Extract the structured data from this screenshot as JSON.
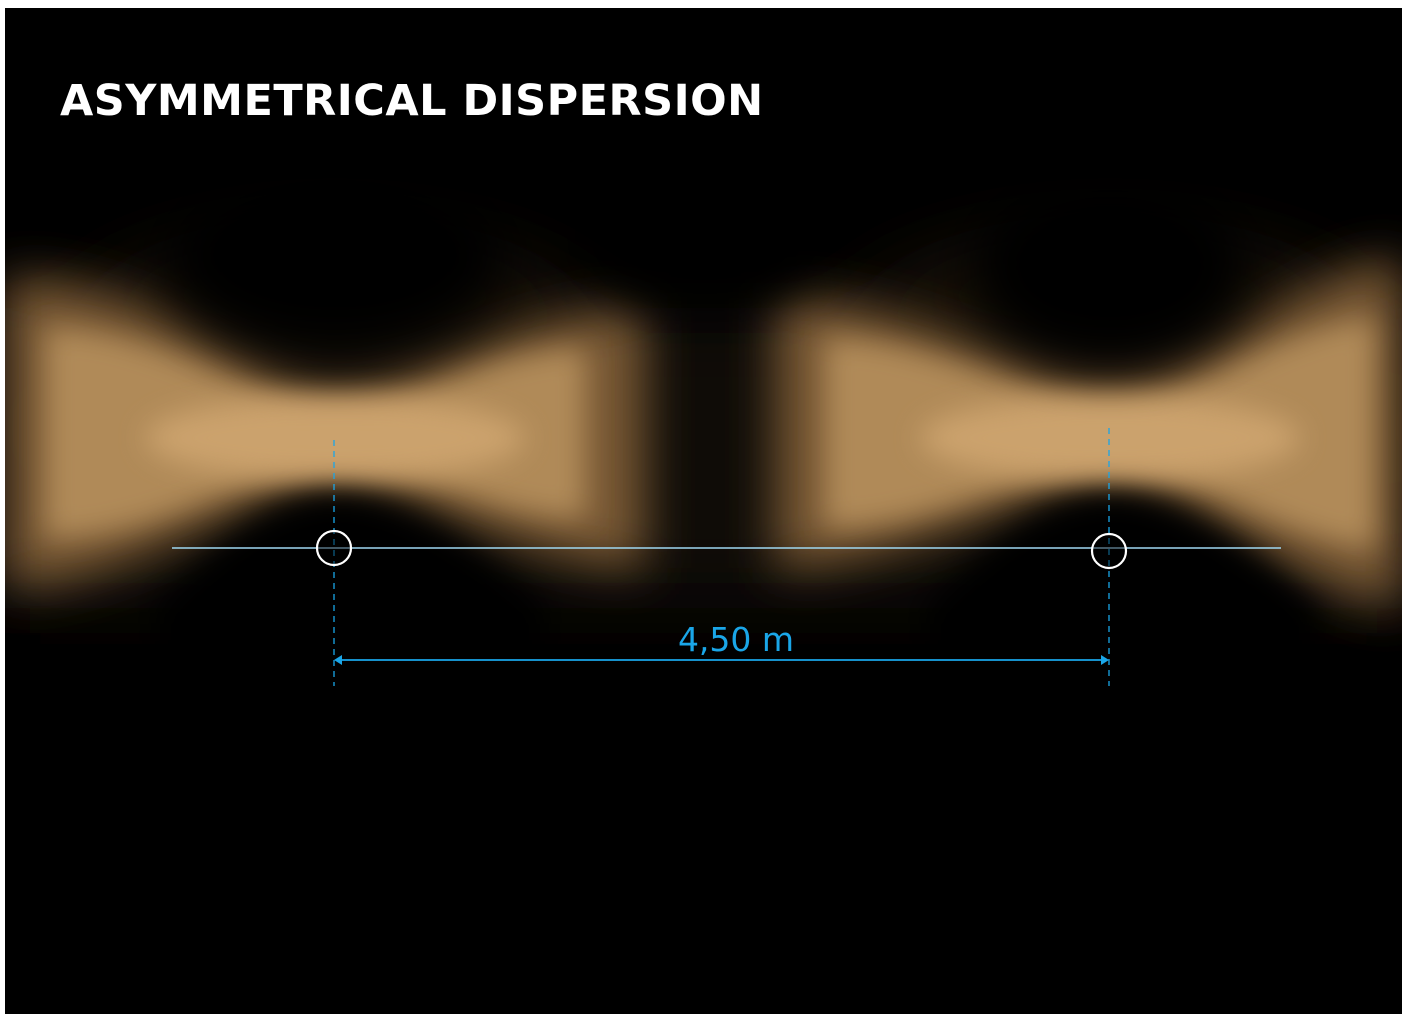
{
  "title": "ASYMMETRICAL DISPERSION",
  "dimension": {
    "label": "4,50 m"
  },
  "luminaires": [
    {
      "name": "luminaire-left"
    },
    {
      "name": "luminaire-right"
    }
  ],
  "colors": {
    "background": "#000000",
    "light": "#caa06a",
    "dimension": "#1aa6e8",
    "ring": "#ffffff"
  }
}
